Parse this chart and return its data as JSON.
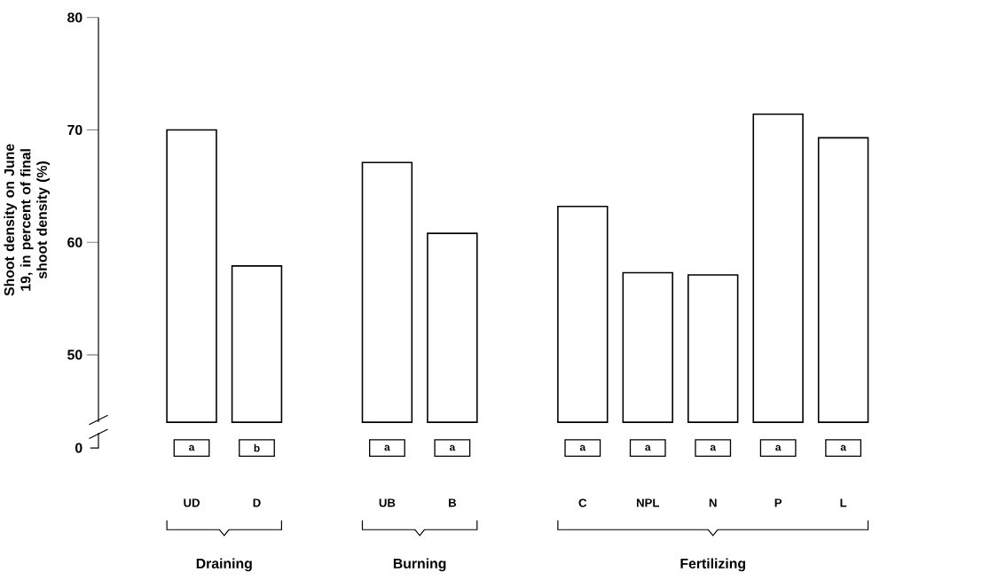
{
  "chart_data": {
    "type": "bar",
    "ylabel": "Shoot density on June 19, in percent of final shoot density (%)",
    "categories": [
      "UD",
      "D",
      null,
      "UB",
      "B",
      null,
      "C",
      "NPL",
      "N",
      "P",
      "L"
    ],
    "values": [
      70,
      57.9,
      null,
      67.1,
      60.8,
      null,
      63.2,
      57.3,
      57.1,
      71.4,
      69.3
    ],
    "color": "#ffffff",
    "ylim": [
      44,
      80
    ],
    "yticks": [
      50,
      60,
      70,
      80
    ],
    "grid": false,
    "annotations": [
      "a",
      "b",
      "a",
      "a",
      "a",
      "a",
      "a",
      "a",
      "a",
      "0",
      "Draining",
      "Burning",
      "Fertilizing"
    ]
  }
}
